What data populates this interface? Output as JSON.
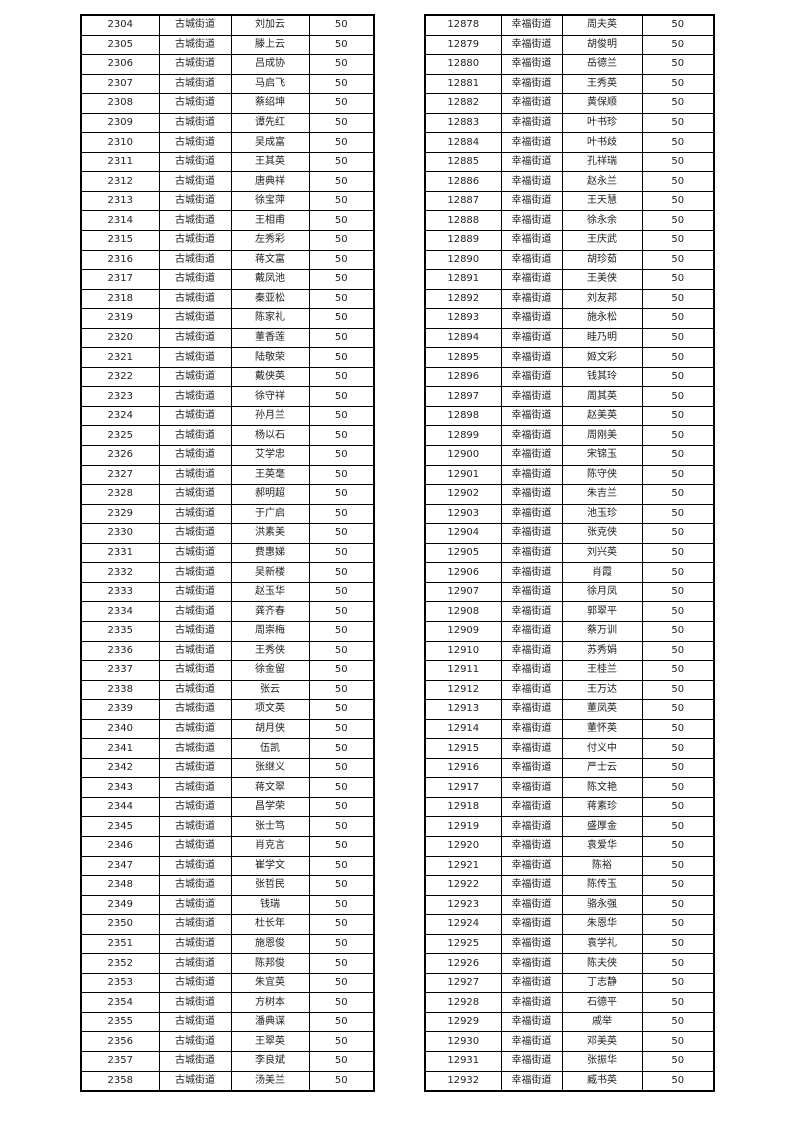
{
  "left_table": {
    "district": "古城街道",
    "amount": "50",
    "start_id": 2304,
    "rows": [
      {
        "id": "2304",
        "name": "刘加云"
      },
      {
        "id": "2305",
        "name": "滕上云"
      },
      {
        "id": "2306",
        "name": "吕成协"
      },
      {
        "id": "2307",
        "name": "马启飞"
      },
      {
        "id": "2308",
        "name": "蔡绍坤"
      },
      {
        "id": "2309",
        "name": "谭先红"
      },
      {
        "id": "2310",
        "name": "吴成富"
      },
      {
        "id": "2311",
        "name": "王其英"
      },
      {
        "id": "2312",
        "name": "唐典祥"
      },
      {
        "id": "2313",
        "name": "徐宝萍"
      },
      {
        "id": "2314",
        "name": "王相甫"
      },
      {
        "id": "2315",
        "name": "左秀彩"
      },
      {
        "id": "2316",
        "name": "蒋文富"
      },
      {
        "id": "2317",
        "name": "戴凤池"
      },
      {
        "id": "2318",
        "name": "秦亚松"
      },
      {
        "id": "2319",
        "name": "陈家礼"
      },
      {
        "id": "2320",
        "name": "董香莲"
      },
      {
        "id": "2321",
        "name": "陆敬荣"
      },
      {
        "id": "2322",
        "name": "戴侠英"
      },
      {
        "id": "2323",
        "name": "徐守祥"
      },
      {
        "id": "2324",
        "name": "孙月兰"
      },
      {
        "id": "2325",
        "name": "杨以石"
      },
      {
        "id": "2326",
        "name": "艾学忠"
      },
      {
        "id": "2327",
        "name": "王英毫"
      },
      {
        "id": "2328",
        "name": "郝明超"
      },
      {
        "id": "2329",
        "name": "于广启"
      },
      {
        "id": "2330",
        "name": "洪素美"
      },
      {
        "id": "2331",
        "name": "费惠娣"
      },
      {
        "id": "2332",
        "name": "吴新楼"
      },
      {
        "id": "2333",
        "name": "赵玉华"
      },
      {
        "id": "2334",
        "name": "龚齐春"
      },
      {
        "id": "2335",
        "name": "周崇梅"
      },
      {
        "id": "2336",
        "name": "王秀侠"
      },
      {
        "id": "2337",
        "name": "徐金留"
      },
      {
        "id": "2338",
        "name": "张云"
      },
      {
        "id": "2339",
        "name": "项文英"
      },
      {
        "id": "2340",
        "name": "胡月侠"
      },
      {
        "id": "2341",
        "name": "伍凯"
      },
      {
        "id": "2342",
        "name": "张继义"
      },
      {
        "id": "2343",
        "name": "蒋文翠"
      },
      {
        "id": "2344",
        "name": "昌学荣"
      },
      {
        "id": "2345",
        "name": "张士笃"
      },
      {
        "id": "2346",
        "name": "肖克言"
      },
      {
        "id": "2347",
        "name": "崔学文"
      },
      {
        "id": "2348",
        "name": "张哲民"
      },
      {
        "id": "2349",
        "name": "钱瑞"
      },
      {
        "id": "2350",
        "name": "杜长年"
      },
      {
        "id": "2351",
        "name": "施恩俊"
      },
      {
        "id": "2352",
        "name": "陈邦俊"
      },
      {
        "id": "2353",
        "name": "朱宜英"
      },
      {
        "id": "2354",
        "name": "方树本"
      },
      {
        "id": "2355",
        "name": "潘典谋"
      },
      {
        "id": "2356",
        "name": "王翠英"
      },
      {
        "id": "2357",
        "name": "李良斌"
      },
      {
        "id": "2358",
        "name": "汤美兰"
      }
    ]
  },
  "right_table": {
    "district": "幸福街道",
    "amount": "50",
    "rows": [
      {
        "id": "12878",
        "name": "周夫英"
      },
      {
        "id": "12879",
        "name": "胡俊明"
      },
      {
        "id": "12880",
        "name": "岳德兰"
      },
      {
        "id": "12881",
        "name": "王秀英"
      },
      {
        "id": "12882",
        "name": "黄保顺"
      },
      {
        "id": "12883",
        "name": "叶书珍"
      },
      {
        "id": "12884",
        "name": "叶书歧"
      },
      {
        "id": "12885",
        "name": "孔祥瑞"
      },
      {
        "id": "12886",
        "name": "赵永兰"
      },
      {
        "id": "12887",
        "name": "王天慧"
      },
      {
        "id": "12888",
        "name": "徐永余"
      },
      {
        "id": "12889",
        "name": "王庆武"
      },
      {
        "id": "12890",
        "name": "胡珍茹"
      },
      {
        "id": "12891",
        "name": "王美侠"
      },
      {
        "id": "12892",
        "name": "刘友邦"
      },
      {
        "id": "12893",
        "name": "施永松"
      },
      {
        "id": "12894",
        "name": "眭乃明"
      },
      {
        "id": "12895",
        "name": "姬文彩"
      },
      {
        "id": "12896",
        "name": "钱其玲"
      },
      {
        "id": "12897",
        "name": "周其英"
      },
      {
        "id": "12898",
        "name": "赵美英"
      },
      {
        "id": "12899",
        "name": "周刚美"
      },
      {
        "id": "12900",
        "name": "宋锦玉"
      },
      {
        "id": "12901",
        "name": "陈守侠"
      },
      {
        "id": "12902",
        "name": "朱吉兰"
      },
      {
        "id": "12903",
        "name": "池玉珍"
      },
      {
        "id": "12904",
        "name": "张克侠"
      },
      {
        "id": "12905",
        "name": "刘兴英"
      },
      {
        "id": "12906",
        "name": "肖霞"
      },
      {
        "id": "12907",
        "name": "徐月凤"
      },
      {
        "id": "12908",
        "name": "郭翠平"
      },
      {
        "id": "12909",
        "name": "蔡万训"
      },
      {
        "id": "12910",
        "name": "苏秀娟"
      },
      {
        "id": "12911",
        "name": "王桂兰"
      },
      {
        "id": "12912",
        "name": "王万达"
      },
      {
        "id": "12913",
        "name": "董凤英"
      },
      {
        "id": "12914",
        "name": "董怀英"
      },
      {
        "id": "12915",
        "name": "付义中"
      },
      {
        "id": "12916",
        "name": "严士云"
      },
      {
        "id": "12917",
        "name": "陈文艳"
      },
      {
        "id": "12918",
        "name": "蒋素珍"
      },
      {
        "id": "12919",
        "name": "盛厚金"
      },
      {
        "id": "12920",
        "name": "袁爱华"
      },
      {
        "id": "12921",
        "name": "陈裕"
      },
      {
        "id": "12922",
        "name": "陈传玉"
      },
      {
        "id": "12923",
        "name": "骆永强"
      },
      {
        "id": "12924",
        "name": "朱恩华"
      },
      {
        "id": "12925",
        "name": "袁学礼"
      },
      {
        "id": "12926",
        "name": "陈夫侠"
      },
      {
        "id": "12927",
        "name": "丁志静"
      },
      {
        "id": "12928",
        "name": "石德平"
      },
      {
        "id": "12929",
        "name": "戚举"
      },
      {
        "id": "12930",
        "name": "邓美英"
      },
      {
        "id": "12931",
        "name": "张振华"
      },
      {
        "id": "12932",
        "name": "臧书英"
      }
    ]
  }
}
